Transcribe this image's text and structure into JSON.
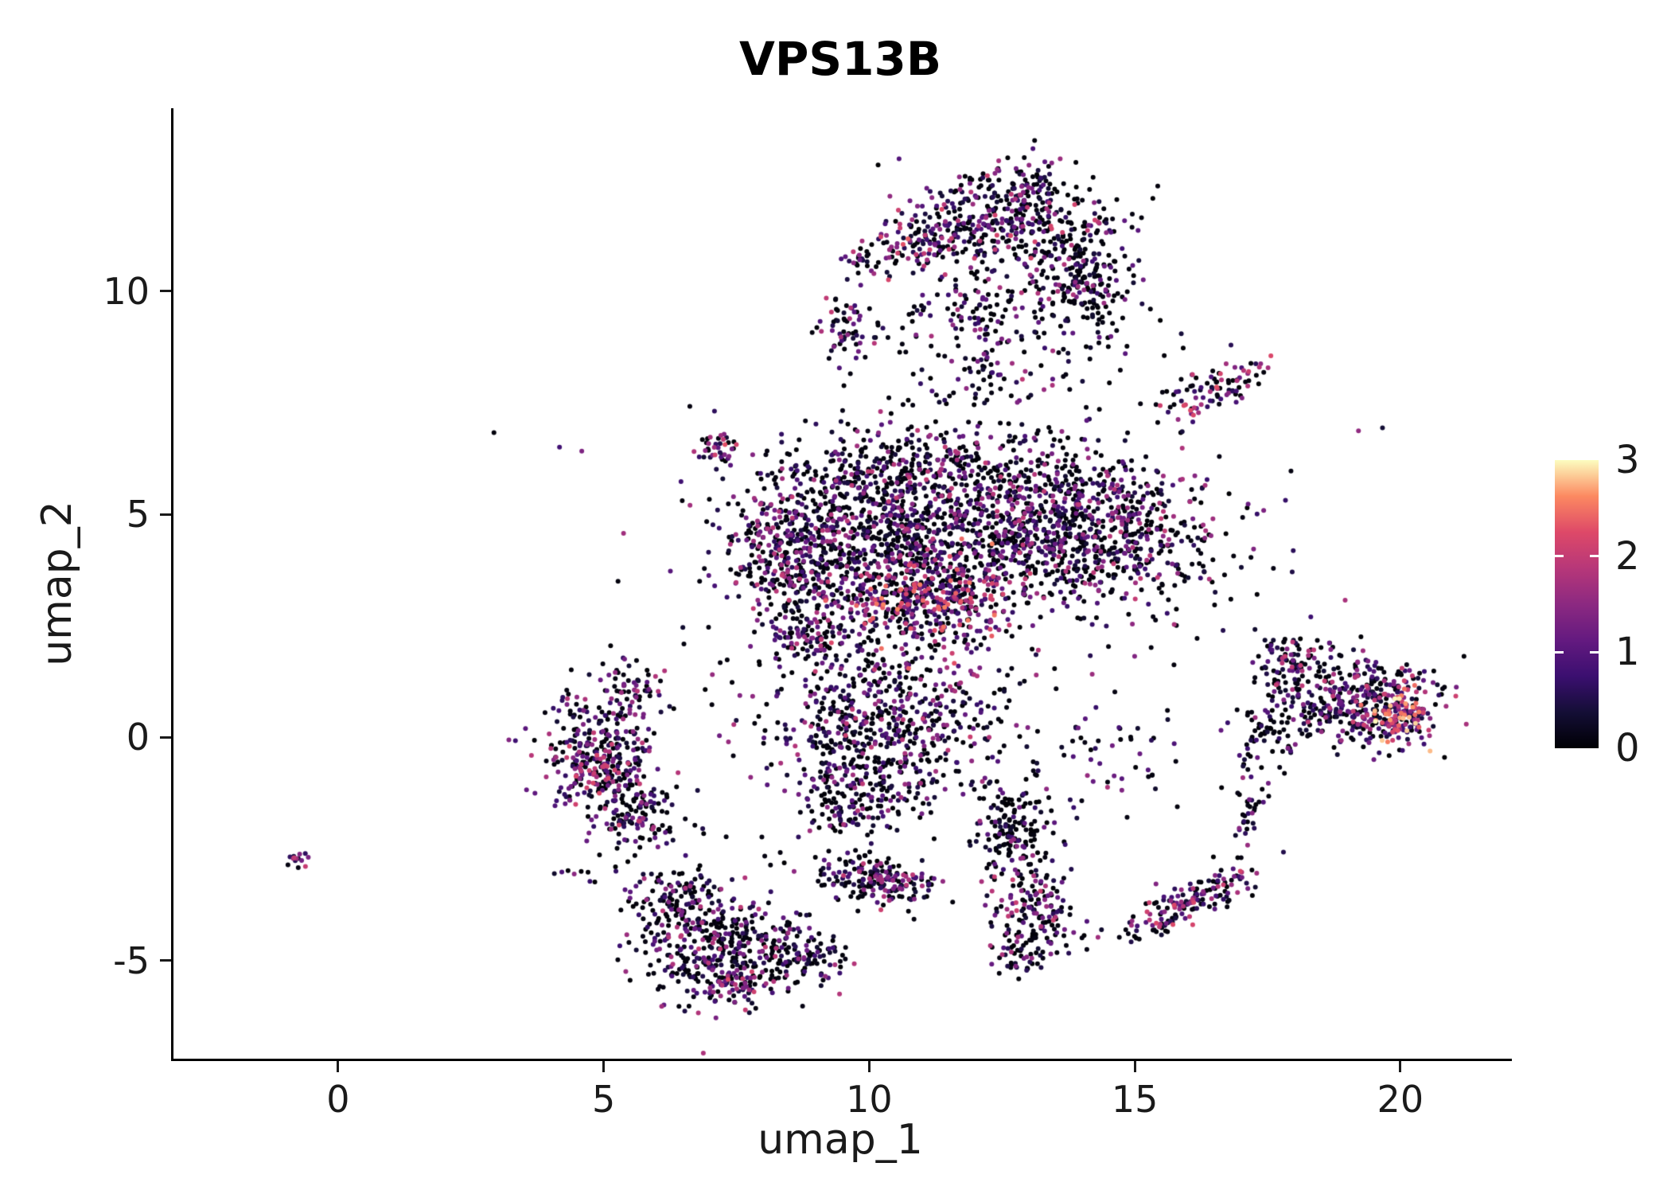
{
  "style": {
    "background": "#ffffff",
    "axis_color": "#000000",
    "text_color": "#1a1a1a",
    "title_color": "#000000"
  },
  "chart_data": {
    "type": "scatter",
    "title": "VPS13B",
    "xlabel": "umap_1",
    "ylabel": "umap_2",
    "xlim": [
      -3.1,
      22.1
    ],
    "ylim": [
      -7.2,
      14.1
    ],
    "xticks": [
      0,
      5,
      10,
      15,
      20
    ],
    "yticks": [
      -5,
      0,
      5,
      10
    ],
    "grid": false,
    "legend_position": "right",
    "point_radius_px": 3,
    "seed": 12345,
    "colorbar": {
      "vmin": 0,
      "vmax": 3,
      "tick_values": [
        0,
        1,
        2,
        3
      ],
      "tick_labels": [
        "0",
        "1",
        "2",
        "3"
      ],
      "inner_tick_values": [
        1,
        2
      ]
    },
    "color_scale": {
      "name": "magma",
      "stops": [
        [
          0,
          "#000004"
        ],
        [
          0.125,
          "#140e36"
        ],
        [
          0.25,
          "#3b0f70"
        ],
        [
          0.375,
          "#641a80"
        ],
        [
          0.5,
          "#8c2981"
        ],
        [
          0.625,
          "#b73779"
        ],
        [
          0.75,
          "#de4968"
        ],
        [
          0.875,
          "#fc8961"
        ],
        [
          1,
          "#fcfdbf"
        ]
      ]
    },
    "cluster_fields": [
      "cx",
      "cy",
      "sx",
      "sy",
      "n",
      "rot_deg",
      "p_zero",
      "vmax",
      "bias"
    ],
    "clusters": [
      [
        12.4,
        11.5,
        1.0,
        0.65,
        400,
        0,
        0.5,
        2.2,
        1.5
      ],
      [
        14.0,
        10.3,
        0.5,
        0.75,
        240,
        0,
        0.62,
        1.9,
        1.7
      ],
      [
        10.9,
        11.0,
        0.45,
        0.3,
        80,
        15,
        0.32,
        2.4,
        1.1
      ],
      [
        11.8,
        9.6,
        0.85,
        0.45,
        100,
        0,
        0.55,
        1.9,
        1.5
      ],
      [
        12.9,
        12.3,
        0.5,
        0.3,
        60,
        0,
        0.5,
        2.0,
        1.5
      ],
      [
        9.6,
        9.2,
        0.2,
        0.4,
        50,
        10,
        0.38,
        2.2,
        1.3
      ],
      [
        9.75,
        10.7,
        0.15,
        0.22,
        22,
        0,
        0.45,
        2.0,
        1.4
      ],
      [
        12.4,
        8.4,
        0.45,
        0.4,
        35,
        0,
        0.6,
        1.7,
        1.6
      ],
      [
        16.5,
        7.8,
        0.55,
        0.25,
        90,
        28,
        0.38,
        2.3,
        1.2
      ],
      [
        12.0,
        5.1,
        1.8,
        0.95,
        850,
        0,
        0.5,
        2.0,
        1.5
      ],
      [
        13.9,
        4.6,
        1.05,
        0.75,
        520,
        0,
        0.5,
        2.0,
        1.5
      ],
      [
        10.3,
        4.5,
        1.0,
        0.85,
        480,
        0,
        0.5,
        2.0,
        1.5
      ],
      [
        8.5,
        4.2,
        0.6,
        0.8,
        360,
        0,
        0.45,
        2.0,
        1.35
      ],
      [
        11.2,
        3.0,
        0.85,
        0.5,
        400,
        0,
        0.32,
        2.6,
        1.0
      ],
      [
        10.6,
        6.2,
        1.1,
        0.35,
        120,
        0,
        0.55,
        1.8,
        1.6
      ],
      [
        7.1,
        6.45,
        0.25,
        0.14,
        38,
        15,
        0.35,
        2.3,
        1.1
      ],
      [
        9.0,
        2.5,
        0.5,
        0.55,
        140,
        0,
        0.45,
        2.0,
        1.4
      ],
      [
        10.4,
        0.4,
        1.05,
        0.9,
        560,
        0,
        0.5,
        2.1,
        1.5
      ],
      [
        9.7,
        -1.3,
        0.6,
        0.5,
        160,
        0,
        0.55,
        1.9,
        1.6
      ],
      [
        4.95,
        -0.5,
        0.5,
        0.7,
        360,
        0,
        0.4,
        2.2,
        1.3
      ],
      [
        5.7,
        -1.8,
        0.45,
        0.4,
        110,
        0,
        0.5,
        2.0,
        1.5
      ],
      [
        5.7,
        1.1,
        0.3,
        0.4,
        55,
        0,
        0.42,
        2.2,
        1.2
      ],
      [
        -0.8,
        -2.75,
        0.16,
        0.1,
        14,
        25,
        0.3,
        2.2,
        1.1
      ],
      [
        7.2,
        -4.7,
        0.8,
        0.62,
        400,
        0,
        0.55,
        2.0,
        1.6
      ],
      [
        6.3,
        -3.6,
        0.45,
        0.35,
        100,
        0,
        0.5,
        1.9,
        1.5
      ],
      [
        7.4,
        -5.5,
        0.32,
        0.18,
        55,
        0,
        0.3,
        2.4,
        1.0
      ],
      [
        8.8,
        -4.9,
        0.4,
        0.35,
        90,
        0,
        0.55,
        1.9,
        1.6
      ],
      [
        4.6,
        -3.1,
        0.35,
        0.1,
        8,
        0,
        0.5,
        1.8,
        1.5
      ],
      [
        10.1,
        -3.2,
        0.65,
        0.25,
        190,
        -12,
        0.5,
        2.1,
        1.35
      ],
      [
        12.7,
        -2.1,
        0.35,
        0.5,
        150,
        0,
        0.65,
        1.7,
        1.8
      ],
      [
        13.1,
        -3.9,
        0.45,
        0.55,
        160,
        0,
        0.45,
        2.1,
        1.35
      ],
      [
        12.8,
        -4.9,
        0.25,
        0.18,
        35,
        0,
        0.5,
        1.9,
        1.5
      ],
      [
        16.0,
        -3.7,
        0.7,
        0.22,
        160,
        33,
        0.4,
        2.3,
        1.2
      ],
      [
        17.1,
        -1.5,
        0.2,
        0.6,
        40,
        -8,
        0.6,
        1.7,
        1.6
      ],
      [
        19.2,
        0.8,
        0.75,
        0.5,
        360,
        0,
        0.45,
        2.1,
        1.3
      ],
      [
        20.0,
        0.45,
        0.3,
        0.3,
        130,
        0,
        0.15,
        3.0,
        0.8
      ],
      [
        17.9,
        1.7,
        0.4,
        0.35,
        90,
        30,
        0.45,
        2.0,
        1.4
      ],
      [
        17.6,
        0.2,
        0.4,
        0.45,
        70,
        0,
        0.6,
        1.7,
        1.6
      ],
      [
        12.5,
        4.0,
        2.8,
        2.2,
        150,
        0,
        0.6,
        1.8,
        1.5
      ],
      [
        10.5,
        0.5,
        2.5,
        1.8,
        100,
        0,
        0.6,
        1.8,
        1.5
      ],
      [
        12.3,
        8.2,
        1.5,
        0.7,
        55,
        0,
        0.6,
        1.8,
        1.5
      ],
      [
        15.9,
        4.2,
        0.9,
        1.3,
        70,
        0,
        0.6,
        1.8,
        1.5
      ],
      [
        14.3,
        -0.6,
        1.0,
        0.8,
        60,
        0,
        0.6,
        1.8,
        1.5
      ]
    ]
  }
}
